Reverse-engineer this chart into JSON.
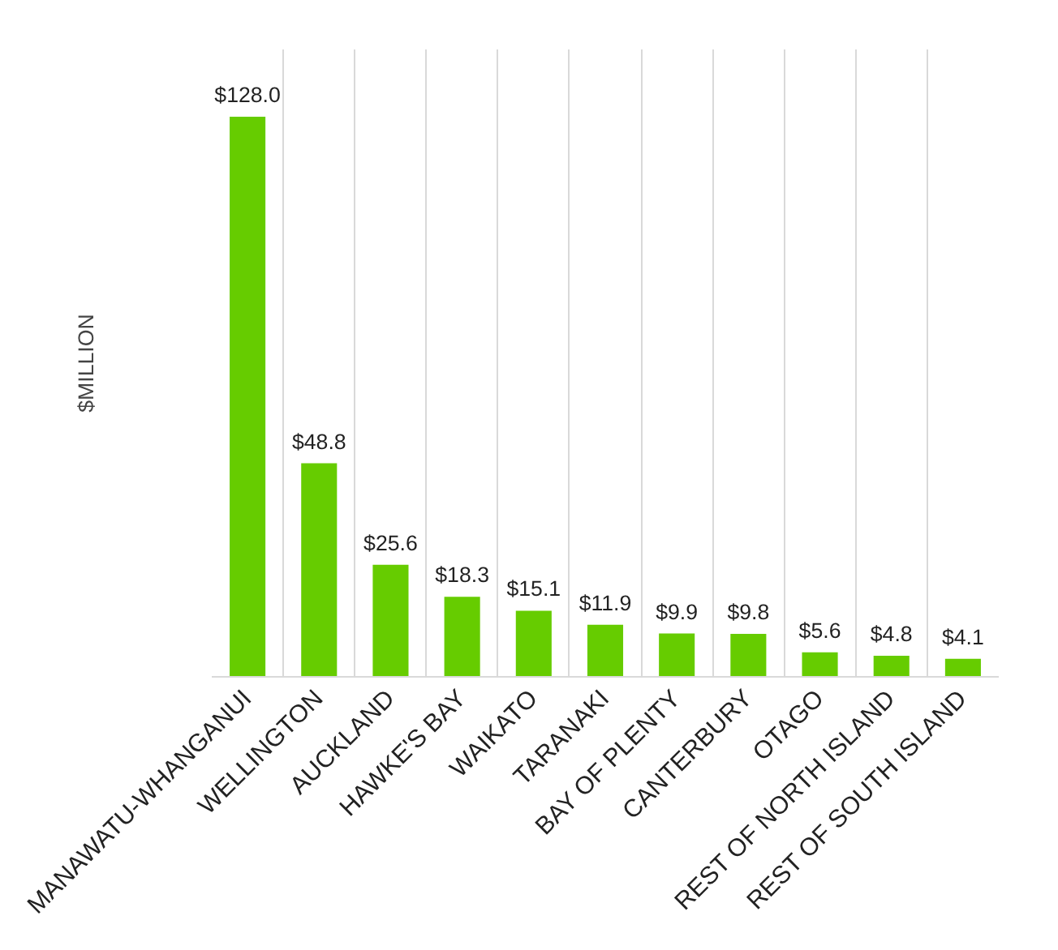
{
  "chart_data": {
    "type": "bar",
    "ylabel": "$MILLION",
    "categories": [
      "MANAWATU-WHANGANUI",
      "WELLINGTON",
      "AUCKLAND",
      "HAWKE'S BAY",
      "WAIKATO",
      "TARANAKI",
      "BAY OF PLENTY",
      "CANTERBURY",
      "OTAGO",
      "REST OF NORTH ISLAND",
      "REST OF SOUTH ISLAND"
    ],
    "values": [
      128.0,
      48.8,
      25.6,
      18.3,
      15.1,
      11.9,
      9.9,
      9.8,
      5.6,
      4.8,
      4.1
    ],
    "value_labels": [
      "$128.0",
      "$48.8",
      "$25.6",
      "$18.3",
      "$15.1",
      "$11.9",
      "$9.9",
      "$9.8",
      "$5.6",
      "$4.8",
      "$4.1"
    ],
    "color": "#66cc00",
    "grid": "x"
  }
}
